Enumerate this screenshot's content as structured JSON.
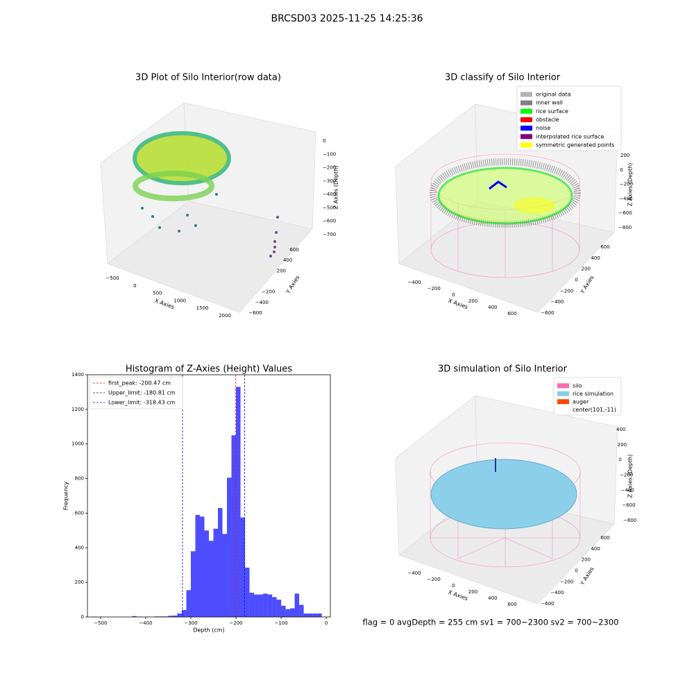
{
  "suptitle": "BRCSD03 2025-11-25 14:25:36",
  "footer": "flag = 0     avgDepth = 255 cm  sv1 = 700~2300  sv2 = 700~2300",
  "chart_data": [
    {
      "type": "scatter3d",
      "title": "3D Plot of Silo Interior(row data)",
      "xlabel": "X Axies",
      "ylabel": "Y Axies",
      "zlabel": "Z Axies (Depth)",
      "xticks": [
        {
          "value": -500,
          "label": "−500"
        },
        0,
        500,
        1000,
        1500,
        2000
      ],
      "yticks": [
        {
          "value": -600,
          "label": "−600"
        },
        {
          "value": -400,
          "label": "−400"
        },
        {
          "value": -200,
          "label": "−200"
        },
        200,
        400,
        600
      ],
      "zticks": [
        0,
        {
          "value": -100,
          "label": "−100"
        },
        {
          "value": -200,
          "label": "−200"
        },
        {
          "value": -300,
          "label": "−300"
        },
        {
          "value": -400,
          "label": "−400"
        },
        {
          "value": -500,
          "label": "−500"
        },
        {
          "value": -600,
          "label": "−600"
        },
        {
          "value": -700,
          "label": "−700"
        }
      ]
    },
    {
      "type": "scatter3d",
      "title": "3D classify of Silo Interior",
      "ylabel": "Y Axies",
      "xlabel": "X Axies",
      "zlabel": "Z Axies (Depth)",
      "xticks": [
        {
          "value": -400,
          "label": "−400"
        },
        {
          "value": -200,
          "label": "−200"
        },
        0,
        200,
        400,
        600
      ],
      "yticks": [
        {
          "value": -600,
          "label": "−600"
        },
        {
          "value": -400,
          "label": "−400"
        },
        {
          "value": -200,
          "label": "−200"
        },
        0,
        200,
        400,
        600
      ],
      "zticks": [
        200,
        0,
        {
          "value": -200,
          "label": "−200"
        },
        {
          "value": -400,
          "label": "−400"
        },
        {
          "value": -600,
          "label": "−600"
        },
        {
          "value": -800,
          "label": "−800"
        }
      ],
      "legend": [
        {
          "name": "original data",
          "color": "#b3b3b3"
        },
        {
          "name": "inner wall",
          "color": "#808080"
        },
        {
          "name": "rice surface",
          "color": "#00ff00"
        },
        {
          "name": "obstacle",
          "color": "#ff0000"
        },
        {
          "name": "noise",
          "color": "#0000ff"
        },
        {
          "name": "interpolated rice surface",
          "color": "#800080"
        },
        {
          "name": "symmetric generated points",
          "color": "#ffff00"
        }
      ]
    },
    {
      "type": "histogram",
      "title": "Histogram of Z-Axies (Height) Values",
      "xlabel": "Depth (cm)",
      "ylabel": "Frequency",
      "color": "#4d4dff",
      "bins": [
        -520,
        -510,
        -500,
        -490,
        -480,
        -470,
        -460,
        -450,
        -440,
        -430,
        -420,
        -410,
        -400,
        -390,
        -380,
        -370,
        -360,
        -350,
        -340,
        -330,
        -320,
        -310,
        -300,
        -290,
        -280,
        -270,
        -260,
        -250,
        -240,
        -230,
        -220,
        -210,
        -200,
        -190,
        -180,
        -170,
        -160,
        -150,
        -140,
        -130,
        -120,
        -110,
        -100,
        -90,
        -80,
        -70,
        -60,
        -50,
        -40,
        -30,
        -20,
        -10
      ],
      "counts": [
        2,
        0,
        0,
        0,
        0,
        0,
        0,
        0,
        0,
        5,
        2,
        0,
        2,
        0,
        3,
        3,
        3,
        7,
        8,
        20,
        40,
        155,
        380,
        590,
        580,
        500,
        440,
        510,
        630,
        480,
        805,
        1050,
        1330,
        575,
        285,
        140,
        130,
        130,
        135,
        130,
        115,
        100,
        65,
        45,
        50,
        135,
        70,
        20,
        20,
        20,
        20
      ],
      "xlim": [
        -529,
        9
      ],
      "ylim": [
        0,
        1400
      ],
      "xticks": [
        {
          "value": -500,
          "label": "−500"
        },
        {
          "value": -400,
          "label": "−400"
        },
        {
          "value": -300,
          "label": "−300"
        },
        {
          "value": -200,
          "label": "−200"
        },
        {
          "value": -100,
          "label": "−100"
        },
        0
      ],
      "yticks": [
        0,
        200,
        400,
        600,
        800,
        1000,
        1200,
        1400
      ],
      "vlines": [
        {
          "label": "first_peak: -200.47 cm",
          "value": -200.47,
          "color": "#ff0000"
        },
        {
          "label": "Upper_limit: -180.81 cm",
          "value": -180.81,
          "color": "#0000ff"
        },
        {
          "label": "Lower_limit: -318.43 cm",
          "value": -318.43,
          "color": "#0000ff"
        }
      ],
      "legend_position": "upper left"
    },
    {
      "type": "surface3d",
      "title": "3D simulation of Silo Interior",
      "xlabel": "X Axies",
      "ylabel": "Y Axies",
      "zlabel": "Z Axies (Depth)",
      "xticks": [
        {
          "value": -400,
          "label": "−400"
        },
        {
          "value": -200,
          "label": "−200"
        },
        0,
        200,
        400,
        600
      ],
      "yticks": [
        {
          "value": -600,
          "label": "−600"
        },
        {
          "value": -400,
          "label": "−400"
        },
        {
          "value": -200,
          "label": "−200"
        },
        0,
        200,
        400,
        600
      ],
      "zticks": [
        400,
        200,
        0,
        {
          "value": -200,
          "label": "−200"
        },
        {
          "value": -400,
          "label": "−400"
        },
        {
          "value": -600,
          "label": "−600"
        },
        {
          "value": -800,
          "label": "−800"
        }
      ],
      "legend": [
        {
          "name": "silo",
          "color": "#ff69b4"
        },
        {
          "name": "rice simulation",
          "color": "#87ceeb"
        },
        {
          "name": "auger",
          "color": "#ff4500"
        },
        {
          "name": "center(101,-11)"
        }
      ]
    }
  ]
}
